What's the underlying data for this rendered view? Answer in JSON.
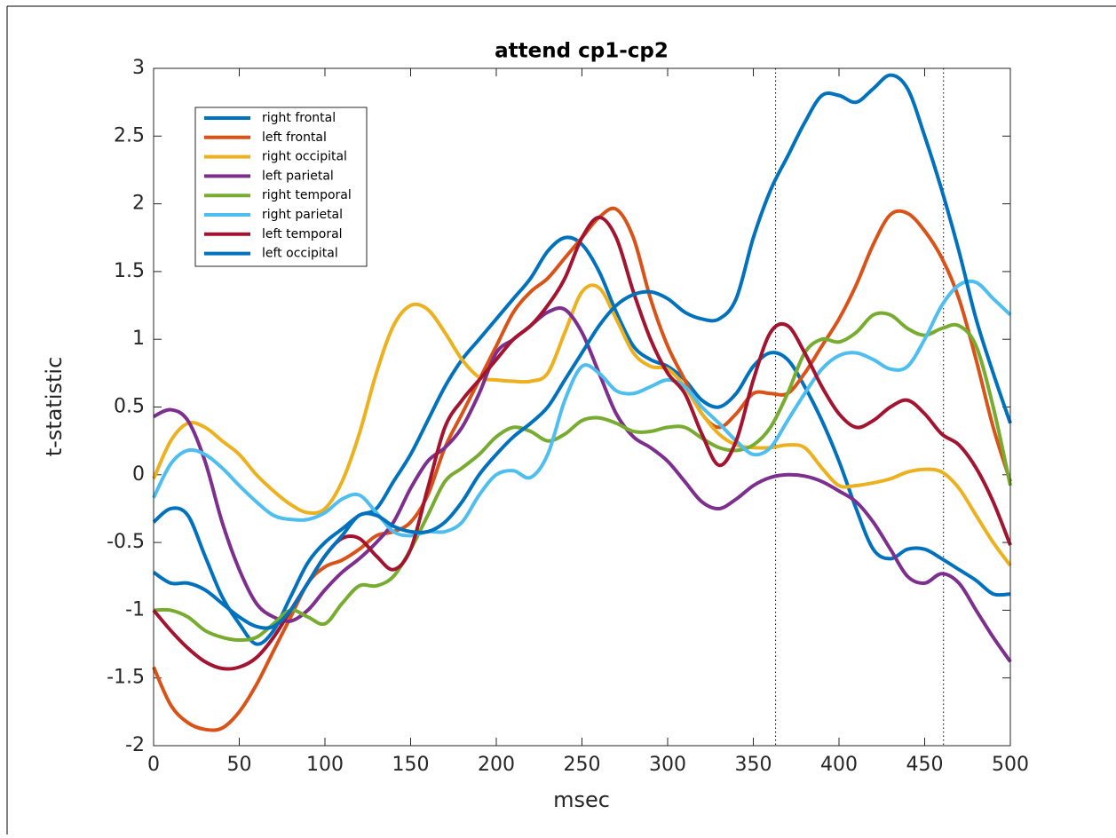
{
  "chart_data": {
    "type": "line",
    "title": "attend cp1-cp2",
    "x_label": "msec",
    "y_label": "t-statistic",
    "x": [
      0,
      10,
      20,
      30,
      40,
      50,
      60,
      70,
      80,
      90,
      100,
      110,
      120,
      130,
      140,
      150,
      160,
      170,
      180,
      190,
      200,
      210,
      220,
      230,
      240,
      250,
      260,
      270,
      280,
      290,
      300,
      310,
      320,
      330,
      340,
      350,
      360,
      370,
      380,
      390,
      400,
      410,
      420,
      430,
      440,
      450,
      460,
      470,
      480,
      490,
      500
    ],
    "xlim": [
      0,
      500
    ],
    "ylim": [
      -2,
      3
    ],
    "xticks": [
      0,
      50,
      100,
      150,
      200,
      250,
      300,
      350,
      400,
      450,
      500
    ],
    "yticks": [
      -2,
      -1.5,
      -1,
      -0.5,
      0,
      0.5,
      1,
      1.5,
      2,
      2.5,
      3
    ],
    "vlines": [
      363,
      461
    ],
    "legend_position": "upper left",
    "series": [
      {
        "name": "right frontal",
        "color": "#0072BD",
        "values": [
          -0.35,
          -0.25,
          -0.3,
          -0.6,
          -0.9,
          -1.1,
          -1.25,
          -1.15,
          -0.9,
          -0.65,
          -0.5,
          -0.4,
          -0.3,
          -0.25,
          -0.05,
          0.15,
          0.4,
          0.65,
          0.85,
          1.0,
          1.15,
          1.3,
          1.45,
          1.65,
          1.75,
          1.7,
          1.5,
          1.2,
          0.95,
          0.85,
          0.8,
          0.7,
          0.55,
          0.5,
          0.6,
          0.8,
          0.9,
          0.85,
          0.65,
          0.4,
          0.1,
          -0.25,
          -0.55,
          -0.62,
          -0.55,
          -0.55,
          -0.62,
          -0.7,
          -0.78,
          -0.88,
          -0.88
        ]
      },
      {
        "name": "left frontal",
        "color": "#D95319",
        "values": [
          -1.42,
          -1.7,
          -1.83,
          -1.88,
          -1.87,
          -1.75,
          -1.55,
          -1.3,
          -1.05,
          -0.8,
          -0.68,
          -0.63,
          -0.55,
          -0.45,
          -0.42,
          -0.35,
          -0.15,
          0.2,
          0.45,
          0.7,
          0.95,
          1.2,
          1.35,
          1.45,
          1.6,
          1.75,
          1.9,
          1.96,
          1.75,
          1.3,
          0.95,
          0.7,
          0.45,
          0.35,
          0.45,
          0.6,
          0.6,
          0.6,
          0.75,
          0.95,
          1.15,
          1.4,
          1.7,
          1.92,
          1.93,
          1.8,
          1.6,
          1.3,
          0.85,
          0.35,
          -0.05
        ]
      },
      {
        "name": "right occipital",
        "color": "#EDB120",
        "values": [
          -0.03,
          0.25,
          0.38,
          0.35,
          0.25,
          0.15,
          0.0,
          -0.12,
          -0.22,
          -0.28,
          -0.25,
          -0.05,
          0.3,
          0.75,
          1.1,
          1.25,
          1.22,
          1.05,
          0.85,
          0.72,
          0.7,
          0.69,
          0.69,
          0.75,
          1.05,
          1.35,
          1.38,
          1.15,
          0.9,
          0.8,
          0.78,
          0.65,
          0.45,
          0.3,
          0.22,
          0.2,
          0.2,
          0.22,
          0.2,
          0.05,
          -0.08,
          -0.08,
          -0.06,
          -0.03,
          0.02,
          0.04,
          0.02,
          -0.1,
          -0.3,
          -0.5,
          -0.67
        ]
      },
      {
        "name": "left parietal",
        "color": "#7E2F8E",
        "values": [
          0.43,
          0.48,
          0.4,
          0.1,
          -0.35,
          -0.7,
          -0.95,
          -1.05,
          -1.08,
          -1.0,
          -0.85,
          -0.72,
          -0.62,
          -0.5,
          -0.35,
          -0.1,
          0.1,
          0.2,
          0.35,
          0.6,
          0.9,
          1.0,
          1.1,
          1.2,
          1.22,
          1.05,
          0.75,
          0.45,
          0.28,
          0.2,
          0.1,
          -0.05,
          -0.2,
          -0.25,
          -0.18,
          -0.08,
          -0.02,
          0.0,
          -0.01,
          -0.05,
          -0.12,
          -0.2,
          -0.35,
          -0.55,
          -0.75,
          -0.8,
          -0.73,
          -0.8,
          -1.0,
          -1.2,
          -1.38
        ]
      },
      {
        "name": "right temporal",
        "color": "#77AC30",
        "values": [
          -1.0,
          -1.0,
          -1.05,
          -1.15,
          -1.2,
          -1.22,
          -1.2,
          -1.1,
          -1.0,
          -1.05,
          -1.1,
          -0.95,
          -0.82,
          -0.82,
          -0.75,
          -0.55,
          -0.3,
          -0.05,
          0.05,
          0.15,
          0.28,
          0.35,
          0.32,
          0.25,
          0.3,
          0.4,
          0.42,
          0.38,
          0.32,
          0.32,
          0.35,
          0.35,
          0.27,
          0.2,
          0.18,
          0.22,
          0.35,
          0.6,
          0.9,
          1.0,
          0.98,
          1.05,
          1.18,
          1.18,
          1.08,
          1.03,
          1.08,
          1.1,
          0.95,
          0.5,
          -0.08
        ]
      },
      {
        "name": "right parietal",
        "color": "#4DBEEE",
        "values": [
          -0.17,
          0.08,
          0.18,
          0.15,
          0.05,
          -0.08,
          -0.2,
          -0.3,
          -0.33,
          -0.33,
          -0.28,
          -0.18,
          -0.15,
          -0.28,
          -0.42,
          -0.45,
          -0.42,
          -0.42,
          -0.35,
          -0.15,
          0.0,
          0.03,
          -0.02,
          0.15,
          0.55,
          0.8,
          0.75,
          0.62,
          0.6,
          0.65,
          0.7,
          0.65,
          0.5,
          0.38,
          0.25,
          0.15,
          0.2,
          0.4,
          0.6,
          0.78,
          0.88,
          0.9,
          0.85,
          0.78,
          0.8,
          1.0,
          1.25,
          1.4,
          1.42,
          1.3,
          1.18
        ]
      },
      {
        "name": "left temporal",
        "color": "#A2142F",
        "values": [
          -1.0,
          -1.15,
          -1.28,
          -1.38,
          -1.43,
          -1.42,
          -1.35,
          -1.2,
          -1.0,
          -0.8,
          -0.6,
          -0.47,
          -0.47,
          -0.6,
          -0.7,
          -0.55,
          -0.1,
          0.35,
          0.55,
          0.7,
          0.85,
          1.0,
          1.1,
          1.25,
          1.45,
          1.75,
          1.9,
          1.75,
          1.35,
          1.0,
          0.75,
          0.6,
          0.3,
          0.07,
          0.25,
          0.7,
          1.05,
          1.1,
          0.9,
          0.65,
          0.45,
          0.35,
          0.4,
          0.5,
          0.55,
          0.45,
          0.3,
          0.22,
          0.05,
          -0.2,
          -0.52
        ]
      },
      {
        "name": "left occipital",
        "color": "#0072BD",
        "values": [
          -0.72,
          -0.8,
          -0.8,
          -0.85,
          -0.95,
          -1.05,
          -1.12,
          -1.12,
          -1.0,
          -0.8,
          -0.6,
          -0.45,
          -0.3,
          -0.3,
          -0.38,
          -0.42,
          -0.42,
          -0.35,
          -0.2,
          0.0,
          0.15,
          0.28,
          0.38,
          0.5,
          0.7,
          0.9,
          1.1,
          1.25,
          1.33,
          1.35,
          1.3,
          1.2,
          1.15,
          1.15,
          1.3,
          1.75,
          2.1,
          2.35,
          2.6,
          2.8,
          2.8,
          2.75,
          2.85,
          2.95,
          2.85,
          2.5,
          2.1,
          1.65,
          1.15,
          0.75,
          0.38
        ]
      }
    ]
  }
}
